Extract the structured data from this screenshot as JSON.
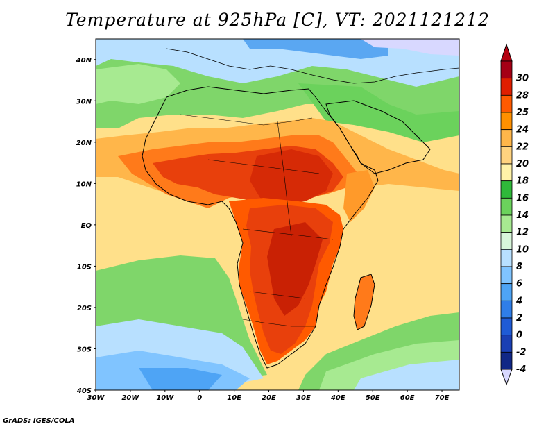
{
  "title": "Temperature at 925hPa [C], VT: 2021121212",
  "credit": "GrADS: IGES/COLA",
  "map": {
    "lat_ticks": [
      "40N",
      "30N",
      "20N",
      "10N",
      "EQ",
      "10S",
      "20S",
      "30S",
      "40S"
    ],
    "lon_ticks": [
      "30W",
      "20W",
      "10W",
      "0",
      "10E",
      "20E",
      "30E",
      "40E",
      "50E",
      "60E",
      "70E"
    ],
    "lat_range": [
      -40,
      45
    ],
    "lon_range": [
      -30,
      75
    ]
  },
  "colorbar": {
    "labels": [
      "30",
      "28",
      "25",
      "24",
      "22",
      "20",
      "18",
      "16",
      "14",
      "12",
      "10",
      "8",
      "6",
      "4",
      "2",
      "0",
      "-2",
      "-4"
    ],
    "colors": [
      "#a50015",
      "#e01e00",
      "#ff5a00",
      "#ff9000",
      "#ffb64a",
      "#ffd37f",
      "#fff3a8",
      "#2fb93a",
      "#6bd25c",
      "#a7ea91",
      "#d8f6da",
      "#b8e0ff",
      "#80c4ff",
      "#4ea4f5",
      "#2f7ee8",
      "#1f5bd6",
      "#1a3fb4",
      "#102786",
      "#f3f3ff"
    ],
    "arrow_top_color": "#b4000f",
    "arrow_bottom_color": "#d8d8ff"
  }
}
